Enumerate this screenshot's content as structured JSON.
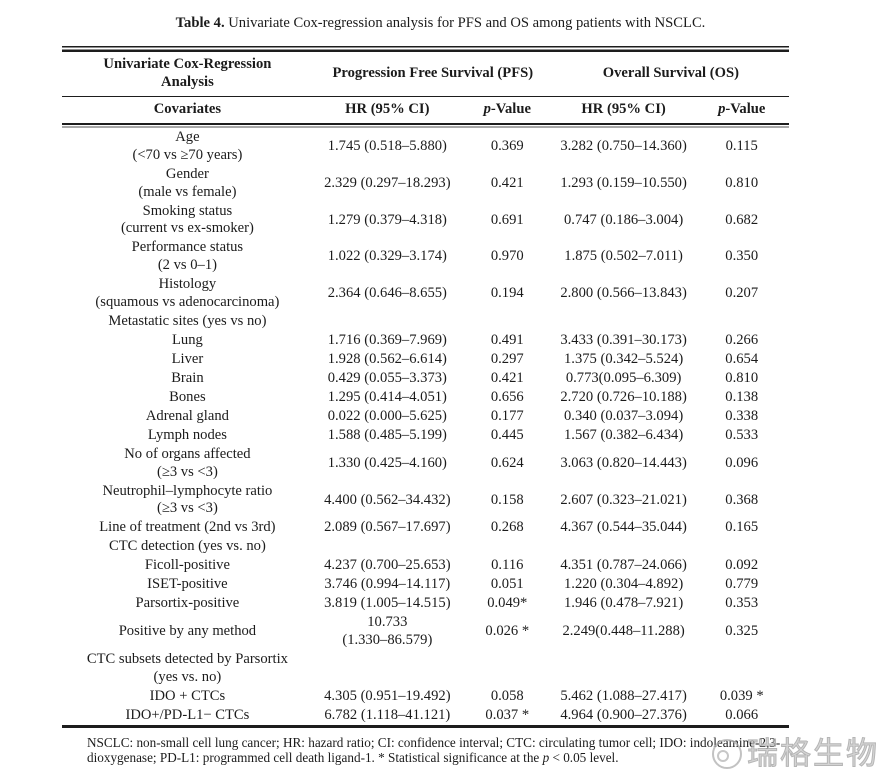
{
  "caption": {
    "label": "Table 4.",
    "text": " Univariate Cox-regression analysis for PFS and OS among patients with NSCLC."
  },
  "header": {
    "group_col1": "Univariate Cox-Regression\nAnalysis",
    "group_pfs": "Progression Free Survival (PFS)",
    "group_os": "Overall Survival (OS)",
    "covariates": "Covariates",
    "hr_ci_pfs": "HR (95% CI)",
    "hr_ci_os": "HR (95% CI)",
    "p_italic": "p",
    "p_suffix": "-Value"
  },
  "table": {
    "rows": [
      {
        "label": "Age\n(<70 vs ≥70 years)",
        "pfs_hr": "1.745 (0.518–5.880)",
        "pfs_p": "0.369",
        "os_hr": "3.282 (0.750–14.360)",
        "os_p": "0.115"
      },
      {
        "label": "Gender\n(male vs female)",
        "pfs_hr": "2.329 (0.297–18.293)",
        "pfs_p": "0.421",
        "os_hr": "1.293 (0.159–10.550)",
        "os_p": "0.810"
      },
      {
        "label": "Smoking status\n(current vs ex-smoker)",
        "pfs_hr": "1.279 (0.379–4.318)",
        "pfs_p": "0.691",
        "os_hr": "0.747 (0.186–3.004)",
        "os_p": "0.682"
      },
      {
        "label": "Performance status\n(2 vs 0–1)",
        "pfs_hr": "1.022 (0.329–3.174)",
        "pfs_p": "0.970",
        "os_hr": "1.875 (0.502–7.011)",
        "os_p": "0.350"
      },
      {
        "label": "Histology\n(squamous vs adenocarcinoma)",
        "pfs_hr": "2.364 (0.646–8.655)",
        "pfs_p": "0.194",
        "os_hr": "2.800 (0.566–13.843)",
        "os_p": "0.207"
      },
      {
        "label": "Metastatic sites (yes vs no)",
        "section": true,
        "pfs_hr": "",
        "pfs_p": "",
        "os_hr": "",
        "os_p": ""
      },
      {
        "label": "Lung",
        "pfs_hr": "1.716 (0.369–7.969)",
        "pfs_p": "0.491",
        "os_hr": "3.433 (0.391–30.173)",
        "os_p": "0.266"
      },
      {
        "label": "Liver",
        "pfs_hr": "1.928 (0.562–6.614)",
        "pfs_p": "0.297",
        "os_hr": "1.375 (0.342–5.524)",
        "os_p": "0.654"
      },
      {
        "label": "Brain",
        "pfs_hr": "0.429 (0.055–3.373)",
        "pfs_p": "0.421",
        "os_hr": "0.773(0.095–6.309)",
        "os_p": "0.810"
      },
      {
        "label": "Bones",
        "pfs_hr": "1.295 (0.414–4.051)",
        "pfs_p": "0.656",
        "os_hr": "2.720 (0.726–10.188)",
        "os_p": "0.138"
      },
      {
        "label": "Adrenal gland",
        "pfs_hr": "0.022 (0.000–5.625)",
        "pfs_p": "0.177",
        "os_hr": "0.340 (0.037–3.094)",
        "os_p": "0.338"
      },
      {
        "label": "Lymph nodes",
        "pfs_hr": "1.588 (0.485–5.199)",
        "pfs_p": "0.445",
        "os_hr": "1.567 (0.382–6.434)",
        "os_p": "0.533"
      },
      {
        "label": "No of organs affected\n(≥3 vs <3)",
        "pfs_hr": "1.330 (0.425–4.160)",
        "pfs_p": "0.624",
        "os_hr": "3.063 (0.820–14.443)",
        "os_p": "0.096"
      },
      {
        "label": "Neutrophil–lymphocyte ratio\n(≥3 vs <3)",
        "pfs_hr": "4.400 (0.562–34.432)",
        "pfs_p": "0.158",
        "os_hr": "2.607 (0.323–21.021)",
        "os_p": "0.368"
      },
      {
        "label": "Line of treatment (2nd vs 3rd)",
        "pfs_hr": "2.089 (0.567–17.697)",
        "pfs_p": "0.268",
        "os_hr": "4.367 (0.544–35.044)",
        "os_p": "0.165"
      },
      {
        "label": "CTC detection (yes vs. no)",
        "section": true,
        "pfs_hr": "",
        "pfs_p": "",
        "os_hr": "",
        "os_p": ""
      },
      {
        "label": "Ficoll-positive",
        "pfs_hr": "4.237 (0.700–25.653)",
        "pfs_p": "0.116",
        "os_hr": "4.351 (0.787–24.066)",
        "os_p": "0.092"
      },
      {
        "label": "ISET-positive",
        "pfs_hr": "3.746 (0.994–14.117)",
        "pfs_p": "0.051",
        "os_hr": "1.220 (0.304–4.892)",
        "os_p": "0.779"
      },
      {
        "label": "Parsortix-positive",
        "pfs_hr": "3.819 (1.005–14.515)",
        "pfs_p": "0.049*",
        "os_hr": "1.946 (0.478–7.921)",
        "os_p": "0.353"
      },
      {
        "label": "Positive by any method",
        "pfs_hr": "10.733\n(1.330–86.579)",
        "pfs_p": "0.026 *",
        "os_hr": "2.249(0.448–11.288)",
        "os_p": "0.325"
      },
      {
        "label": "CTC subsets detected by Parsortix\n(yes vs. no)",
        "section": true,
        "pfs_hr": "",
        "pfs_p": "",
        "os_hr": "",
        "os_p": ""
      },
      {
        "label": "IDO + CTCs",
        "pfs_hr": "4.305 (0.951–19.492)",
        "pfs_p": "0.058",
        "os_hr": "5.462 (1.088–27.417)",
        "os_p": "0.039 *"
      },
      {
        "label": "IDO+/PD-L1− CTCs",
        "pfs_hr": "6.782 (1.118–41.121)",
        "pfs_p": "0.037 *",
        "os_hr": "4.964 (0.900–27.376)",
        "os_p": "0.066"
      }
    ]
  },
  "footnote": {
    "text1": "NSCLC: non-small cell lung cancer; HR: hazard ratio; CI: confidence interval; CTC: circulating tumor cell; IDO: indoleamine-2,3-dioxygenase; PD-L1: programmed cell death ligand-1. * Statistical significance at the ",
    "p_italic": "p",
    "text2": " < 0.05 level."
  },
  "watermark": {
    "text": "瑞格生物"
  },
  "colors": {
    "text": "#1b1b1b",
    "rule": "#1d1d1d",
    "watermark_gray": "#9d9d9d",
    "background": "#ffffff"
  }
}
